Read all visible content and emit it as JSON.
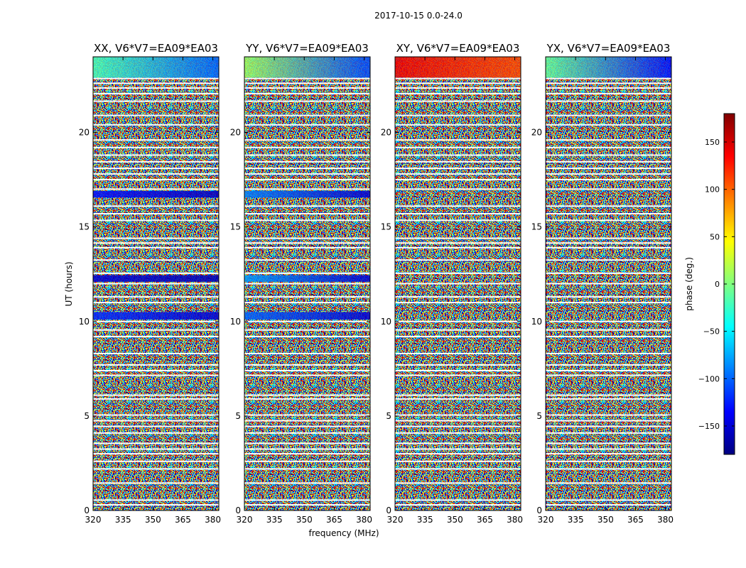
{
  "chart_data": {
    "type": "heatmap",
    "suptitle": "2017-10-15 0.0-24.0",
    "xlabel": "frequency (MHz)",
    "ylabel": "UT (hours)",
    "x_ticks": [
      320,
      335,
      350,
      365,
      380
    ],
    "y_ticks": [
      0,
      5,
      10,
      15,
      20
    ],
    "xlim": [
      320,
      383
    ],
    "ylim": [
      0,
      24
    ],
    "panels": [
      {
        "title": "XX, V6*V7=EA09*EA03",
        "pol": "XX",
        "bands": [
          {
            "t0": 22.9,
            "t1": 24.0,
            "phase_start": -20,
            "phase_end": -100
          },
          {
            "t0": 16.55,
            "t1": 16.9,
            "phase_start": -130,
            "phase_end": -155
          },
          {
            "t0": 12.1,
            "t1": 12.45,
            "phase_start": -150,
            "phase_end": -160
          },
          {
            "t0": 10.1,
            "t1": 10.5,
            "phase_start": -120,
            "phase_end": -150
          }
        ]
      },
      {
        "title": "YY, V6*V7=EA09*EA03",
        "pol": "YY",
        "bands": [
          {
            "t0": 22.9,
            "t1": 24.0,
            "phase_start": 10,
            "phase_end": -110
          },
          {
            "t0": 16.55,
            "t1": 16.9,
            "phase_start": -90,
            "phase_end": -150
          },
          {
            "t0": 12.1,
            "t1": 12.45,
            "phase_start": -80,
            "phase_end": -150
          },
          {
            "t0": 10.1,
            "t1": 10.5,
            "phase_start": -100,
            "phase_end": -150
          }
        ]
      },
      {
        "title": "XY, V6*V7=EA09*EA03",
        "pol": "XY",
        "bands": [
          {
            "t0": 22.9,
            "t1": 24.0,
            "phase_start": 140,
            "phase_end": 110
          }
        ]
      },
      {
        "title": "YX, V6*V7=EA09*EA03",
        "pol": "YX",
        "bands": [
          {
            "t0": 22.9,
            "t1": 24.0,
            "phase_start": -10,
            "phase_end": -130
          }
        ]
      }
    ],
    "gaps_hours": [
      0.3,
      0.55,
      1.45,
      2.2,
      2.6,
      3.0,
      3.25,
      3.55,
      4.1,
      4.45,
      4.75,
      5.05,
      5.9,
      6.1,
      7.15,
      7.4,
      7.7,
      8.3,
      9.2,
      9.55,
      10.0,
      11.0,
      11.3,
      12.0,
      12.55,
      13.25,
      13.9,
      14.15,
      14.4,
      15.35,
      15.7,
      16.1,
      17.0,
      17.5,
      17.8,
      18.1,
      18.45,
      18.8,
      19.2,
      19.6,
      20.4,
      20.9,
      21.65,
      22.05,
      22.35,
      22.6,
      22.85
    ],
    "colorbar": {
      "label": "phase (deg.)",
      "range": [
        -180,
        180
      ],
      "ticks": [
        -150,
        -100,
        -50,
        0,
        50,
        100,
        150
      ],
      "tick_labels": [
        "−150",
        "−100",
        "−50",
        "0",
        "50",
        "100",
        "150"
      ],
      "colormap": "jet"
    }
  }
}
